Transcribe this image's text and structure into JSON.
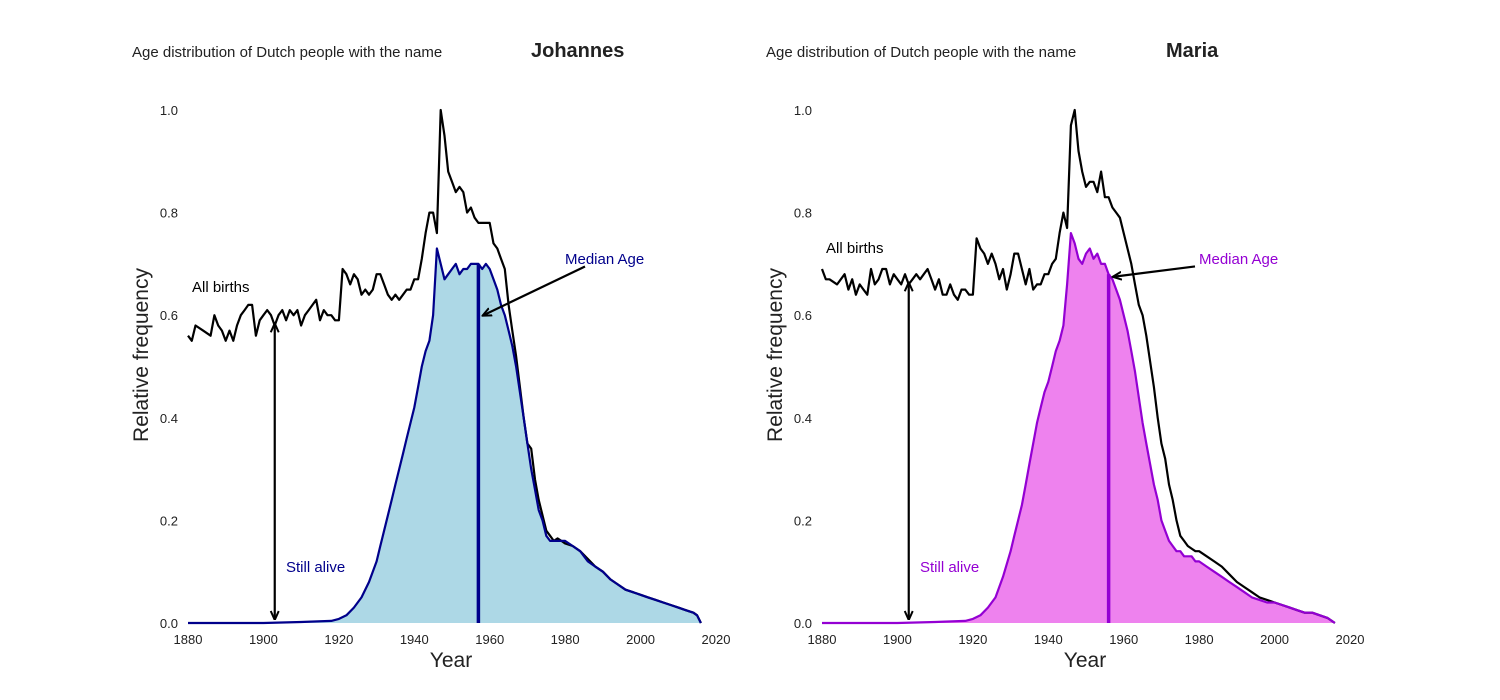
{
  "chart_data": [
    {
      "type": "area",
      "title_prefix": "Age distribution of Dutch people with the name",
      "title_name": "Johannes",
      "xlabel": "Year",
      "ylabel": "Relative frequency",
      "xlim": [
        1880,
        2020
      ],
      "ylim": [
        0,
        1.0
      ],
      "xticks": [
        1880,
        1900,
        1920,
        1940,
        1960,
        1980,
        2000,
        2020
      ],
      "yticks": [
        0.0,
        0.2,
        0.4,
        0.6,
        0.8,
        1.0
      ],
      "grid": false,
      "accent_color": "#00008b",
      "fill_color": "#add8e6",
      "series": [
        {
          "name": "All births",
          "color": "#000000",
          "x": [
            1880,
            1881,
            1882,
            1884,
            1886,
            1887,
            1888,
            1889,
            1890,
            1891,
            1892,
            1893,
            1894,
            1895,
            1896,
            1897,
            1898,
            1899,
            1900,
            1901,
            1902,
            1903,
            1904,
            1905,
            1906,
            1907,
            1908,
            1909,
            1910,
            1911,
            1912,
            1913,
            1914,
            1915,
            1916,
            1917,
            1918,
            1919,
            1920,
            1921,
            1922,
            1923,
            1924,
            1925,
            1926,
            1927,
            1928,
            1929,
            1930,
            1931,
            1932,
            1933,
            1934,
            1935,
            1936,
            1937,
            1938,
            1939,
            1940,
            1941,
            1942,
            1943,
            1944,
            1945,
            1946,
            1947,
            1948,
            1949,
            1950,
            1951,
            1952,
            1953,
            1954,
            1955,
            1956,
            1957,
            1958,
            1959,
            1960,
            1961,
            1962,
            1963,
            1964,
            1965,
            1966,
            1967,
            1968,
            1969,
            1970,
            1971,
            1972,
            1973,
            1974,
            1975,
            1976,
            1977,
            1978,
            1979,
            1980,
            1982,
            1984,
            1986,
            1988,
            1990,
            1992,
            1994,
            1996,
            1998,
            2000,
            2002,
            2004,
            2006,
            2008,
            2010,
            2012,
            2014,
            2015,
            2016
          ],
          "y": [
            0.56,
            0.55,
            0.58,
            0.57,
            0.56,
            0.6,
            0.58,
            0.57,
            0.55,
            0.57,
            0.55,
            0.58,
            0.6,
            0.61,
            0.62,
            0.62,
            0.56,
            0.59,
            0.6,
            0.61,
            0.6,
            0.58,
            0.6,
            0.61,
            0.59,
            0.61,
            0.6,
            0.61,
            0.58,
            0.6,
            0.61,
            0.62,
            0.63,
            0.59,
            0.61,
            0.6,
            0.6,
            0.59,
            0.59,
            0.69,
            0.68,
            0.66,
            0.68,
            0.67,
            0.64,
            0.65,
            0.64,
            0.65,
            0.68,
            0.68,
            0.66,
            0.64,
            0.63,
            0.64,
            0.63,
            0.64,
            0.65,
            0.65,
            0.67,
            0.67,
            0.71,
            0.76,
            0.8,
            0.8,
            0.76,
            1.0,
            0.95,
            0.88,
            0.86,
            0.84,
            0.85,
            0.84,
            0.8,
            0.81,
            0.79,
            0.78,
            0.78,
            0.78,
            0.78,
            0.74,
            0.73,
            0.71,
            0.69,
            0.62,
            0.57,
            0.52,
            0.46,
            0.4,
            0.35,
            0.34,
            0.28,
            0.24,
            0.21,
            0.18,
            0.17,
            0.16,
            0.165,
            0.16,
            0.155,
            0.15,
            0.14,
            0.125,
            0.11,
            0.1,
            0.085,
            0.075,
            0.065,
            0.06,
            0.055,
            0.05,
            0.045,
            0.04,
            0.035,
            0.03,
            0.025,
            0.02,
            0.015,
            0.0
          ]
        },
        {
          "name": "Still alive",
          "color": "#00008b",
          "x": [
            1880,
            1900,
            1910,
            1918,
            1920,
            1922,
            1924,
            1926,
            1928,
            1930,
            1931,
            1932,
            1933,
            1934,
            1935,
            1936,
            1937,
            1938,
            1939,
            1940,
            1941,
            1942,
            1943,
            1944,
            1945,
            1946,
            1947,
            1948,
            1949,
            1950,
            1951,
            1952,
            1953,
            1954,
            1955,
            1956,
            1957,
            1958,
            1959,
            1960,
            1961,
            1962,
            1963,
            1964,
            1965,
            1966,
            1967,
            1968,
            1969,
            1970,
            1971,
            1972,
            1973,
            1974,
            1975,
            1976,
            1977,
            1978,
            1979,
            1980,
            1982,
            1984,
            1986,
            1988,
            1990,
            1992,
            1994,
            1996,
            1998,
            2000,
            2002,
            2004,
            2006,
            2008,
            2010,
            2012,
            2014,
            2015,
            2016
          ],
          "y": [
            0.0,
            0.0,
            0.002,
            0.004,
            0.008,
            0.015,
            0.03,
            0.05,
            0.08,
            0.12,
            0.15,
            0.18,
            0.21,
            0.24,
            0.27,
            0.3,
            0.33,
            0.36,
            0.39,
            0.42,
            0.46,
            0.5,
            0.53,
            0.55,
            0.6,
            0.73,
            0.7,
            0.67,
            0.68,
            0.69,
            0.7,
            0.68,
            0.69,
            0.69,
            0.7,
            0.7,
            0.7,
            0.69,
            0.7,
            0.69,
            0.67,
            0.65,
            0.62,
            0.6,
            0.57,
            0.54,
            0.5,
            0.45,
            0.4,
            0.35,
            0.3,
            0.26,
            0.22,
            0.2,
            0.17,
            0.16,
            0.16,
            0.16,
            0.16,
            0.16,
            0.15,
            0.14,
            0.12,
            0.11,
            0.1,
            0.085,
            0.075,
            0.065,
            0.06,
            0.055,
            0.05,
            0.045,
            0.04,
            0.035,
            0.03,
            0.025,
            0.02,
            0.015,
            0.0
          ]
        }
      ],
      "median_age_year": 1957,
      "annotations": [
        {
          "text": "All births",
          "color": "#000000"
        },
        {
          "text": "Still alive",
          "color": "#00008b",
          "arrow_from": [
            1903,
            0.0
          ],
          "arrow_to": [
            1903,
            0.59
          ]
        },
        {
          "text": "Median Age",
          "color": "#00008b",
          "arrow_to": [
            1957,
            0.6
          ]
        }
      ]
    },
    {
      "type": "area",
      "title_prefix": "Age distribution of Dutch people with the name",
      "title_name": "Maria",
      "xlabel": "Year",
      "ylabel": "Relative frequency",
      "xlim": [
        1880,
        2020
      ],
      "ylim": [
        0,
        1.0
      ],
      "xticks": [
        1880,
        1900,
        1920,
        1940,
        1960,
        1980,
        2000,
        2020
      ],
      "yticks": [
        0.0,
        0.2,
        0.4,
        0.6,
        0.8,
        1.0
      ],
      "grid": false,
      "accent_color": "#9400d3",
      "fill_color": "#ee82ee",
      "series": [
        {
          "name": "All births",
          "color": "#000000",
          "x": [
            1880,
            1881,
            1882,
            1884,
            1886,
            1887,
            1888,
            1889,
            1890,
            1891,
            1892,
            1893,
            1894,
            1895,
            1896,
            1897,
            1898,
            1899,
            1900,
            1901,
            1902,
            1903,
            1904,
            1905,
            1906,
            1907,
            1908,
            1909,
            1910,
            1911,
            1912,
            1913,
            1914,
            1915,
            1916,
            1917,
            1918,
            1919,
            1920,
            1921,
            1922,
            1923,
            1924,
            1925,
            1926,
            1927,
            1928,
            1929,
            1930,
            1931,
            1932,
            1933,
            1934,
            1935,
            1936,
            1937,
            1938,
            1939,
            1940,
            1941,
            1942,
            1943,
            1944,
            1945,
            1946,
            1947,
            1948,
            1949,
            1950,
            1951,
            1952,
            1953,
            1954,
            1955,
            1956,
            1957,
            1958,
            1959,
            1960,
            1961,
            1962,
            1963,
            1964,
            1965,
            1966,
            1967,
            1968,
            1969,
            1970,
            1971,
            1972,
            1973,
            1974,
            1975,
            1976,
            1977,
            1978,
            1979,
            1980,
            1982,
            1984,
            1986,
            1988,
            1990,
            1992,
            1994,
            1996,
            1998,
            2000,
            2002,
            2004,
            2006,
            2008,
            2010,
            2012,
            2014,
            2015,
            2016
          ],
          "y": [
            0.69,
            0.67,
            0.67,
            0.66,
            0.68,
            0.65,
            0.67,
            0.64,
            0.66,
            0.65,
            0.64,
            0.69,
            0.66,
            0.67,
            0.69,
            0.69,
            0.66,
            0.68,
            0.67,
            0.66,
            0.68,
            0.66,
            0.67,
            0.68,
            0.67,
            0.68,
            0.69,
            0.67,
            0.65,
            0.67,
            0.64,
            0.64,
            0.66,
            0.64,
            0.63,
            0.65,
            0.65,
            0.64,
            0.64,
            0.75,
            0.73,
            0.72,
            0.7,
            0.72,
            0.7,
            0.67,
            0.69,
            0.65,
            0.68,
            0.72,
            0.72,
            0.69,
            0.66,
            0.69,
            0.65,
            0.66,
            0.66,
            0.68,
            0.68,
            0.7,
            0.71,
            0.76,
            0.8,
            0.77,
            0.97,
            1.0,
            0.92,
            0.88,
            0.85,
            0.86,
            0.86,
            0.84,
            0.88,
            0.83,
            0.83,
            0.81,
            0.8,
            0.79,
            0.76,
            0.73,
            0.7,
            0.66,
            0.62,
            0.6,
            0.56,
            0.51,
            0.46,
            0.4,
            0.35,
            0.32,
            0.27,
            0.24,
            0.2,
            0.17,
            0.16,
            0.15,
            0.145,
            0.14,
            0.14,
            0.13,
            0.12,
            0.11,
            0.095,
            0.08,
            0.07,
            0.06,
            0.05,
            0.045,
            0.04,
            0.035,
            0.03,
            0.025,
            0.02,
            0.02,
            0.015,
            0.01,
            0.005,
            0.0
          ]
        },
        {
          "name": "Still alive",
          "color": "#9400d3",
          "x": [
            1880,
            1900,
            1910,
            1918,
            1920,
            1922,
            1924,
            1926,
            1928,
            1930,
            1931,
            1932,
            1933,
            1934,
            1935,
            1936,
            1937,
            1938,
            1939,
            1940,
            1941,
            1942,
            1943,
            1944,
            1945,
            1946,
            1947,
            1948,
            1949,
            1950,
            1951,
            1952,
            1953,
            1954,
            1955,
            1956,
            1957,
            1958,
            1959,
            1960,
            1961,
            1962,
            1963,
            1964,
            1965,
            1966,
            1967,
            1968,
            1969,
            1970,
            1971,
            1972,
            1973,
            1974,
            1975,
            1976,
            1977,
            1978,
            1979,
            1980,
            1982,
            1984,
            1986,
            1988,
            1990,
            1992,
            1994,
            1996,
            1998,
            2000,
            2002,
            2004,
            2006,
            2008,
            2010,
            2012,
            2014,
            2015,
            2016
          ],
          "y": [
            0.0,
            0.0,
            0.002,
            0.004,
            0.008,
            0.015,
            0.03,
            0.05,
            0.09,
            0.14,
            0.17,
            0.2,
            0.23,
            0.27,
            0.31,
            0.35,
            0.39,
            0.42,
            0.45,
            0.47,
            0.5,
            0.53,
            0.55,
            0.58,
            0.66,
            0.76,
            0.74,
            0.71,
            0.7,
            0.72,
            0.73,
            0.71,
            0.72,
            0.7,
            0.7,
            0.68,
            0.67,
            0.65,
            0.63,
            0.6,
            0.57,
            0.53,
            0.49,
            0.44,
            0.39,
            0.35,
            0.31,
            0.27,
            0.24,
            0.2,
            0.18,
            0.16,
            0.15,
            0.14,
            0.14,
            0.13,
            0.13,
            0.13,
            0.12,
            0.12,
            0.11,
            0.1,
            0.09,
            0.08,
            0.07,
            0.06,
            0.05,
            0.045,
            0.04,
            0.04,
            0.035,
            0.03,
            0.025,
            0.02,
            0.02,
            0.015,
            0.01,
            0.005,
            0.0
          ]
        }
      ],
      "median_age_year": 1956,
      "annotations": [
        {
          "text": "All births",
          "color": "#000000"
        },
        {
          "text": "Still alive",
          "color": "#9400d3",
          "arrow_from": [
            1903,
            0.0
          ],
          "arrow_to": [
            1903,
            0.67
          ]
        },
        {
          "text": "Median Age",
          "color": "#9400d3",
          "arrow_to": [
            1956,
            0.675
          ]
        }
      ]
    }
  ]
}
